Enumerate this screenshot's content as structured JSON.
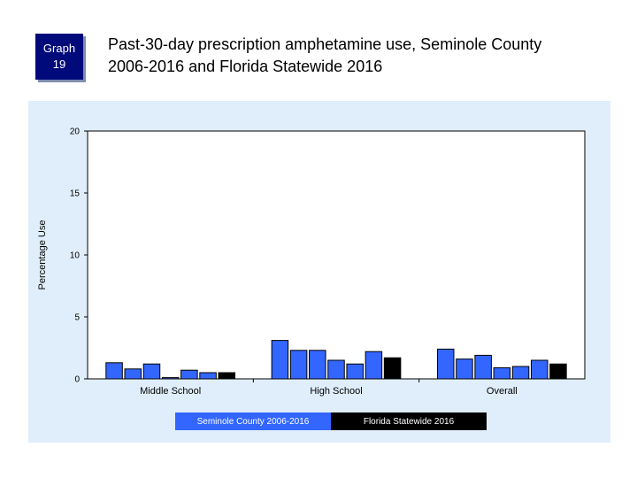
{
  "badge": {
    "line1": "Graph",
    "line2": "19"
  },
  "header": {
    "title_line1": "Past-30-day prescription amphetamine use, Seminole County",
    "title_line2": "2006-2016 and Florida Statewide 2016"
  },
  "colors": {
    "county": "#3366ff",
    "statewide": "#000000",
    "panel": "#dfeefa",
    "badge": "#000a7a"
  },
  "chart_data": {
    "type": "bar",
    "title": "Past-30-day prescription amphetamine use, Seminole County 2006-2016 and Florida Statewide 2016",
    "ylabel": "Percentage Use",
    "xlabel": "",
    "ylim": [
      0,
      20
    ],
    "yticks": [
      0,
      5,
      10,
      15,
      20
    ],
    "grid": false,
    "categories": [
      "Middle School",
      "High School",
      "Overall"
    ],
    "series": [
      {
        "name": "Seminole County 2006-2016",
        "color": "#3366ff",
        "groups": [
          [
            1.3,
            0.8,
            1.2,
            0.1,
            0.7,
            0.5
          ],
          [
            3.1,
            2.3,
            2.3,
            1.5,
            1.2,
            2.2
          ],
          [
            2.4,
            1.6,
            1.9,
            0.9,
            1.0,
            1.5
          ]
        ]
      },
      {
        "name": "Florida Statewide 2016",
        "color": "#000000",
        "groups": [
          [
            0.5
          ],
          [
            1.7
          ],
          [
            1.2
          ]
        ]
      }
    ],
    "legend": "bottom-center"
  }
}
